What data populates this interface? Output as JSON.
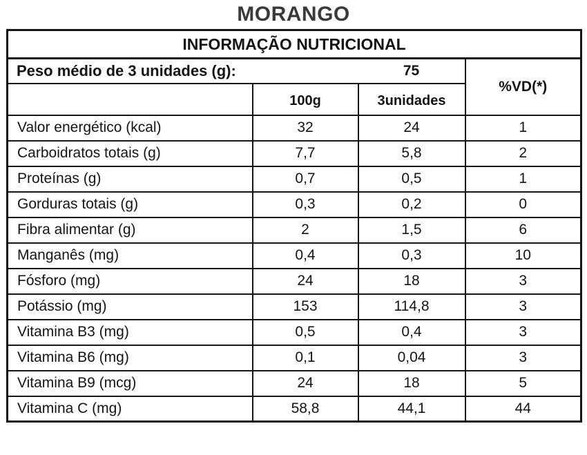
{
  "title": "MORANGO",
  "table": {
    "header": "INFORMAÇÃO NUTRICIONAL",
    "weight_row": {
      "label": "Peso médio de 3 unidades (g):",
      "value": "75"
    },
    "vd_header": "%VD(*)",
    "col_headers": {
      "per_100g": "100g",
      "per_3units": "3unidades"
    },
    "rows": [
      {
        "label": "Valor energético (kcal)",
        "per_100g": "32",
        "per_3units": "24",
        "vd": "1"
      },
      {
        "label": "Carboidratos totais (g)",
        "per_100g": "7,7",
        "per_3units": "5,8",
        "vd": "2"
      },
      {
        "label": "Proteínas (g)",
        "per_100g": "0,7",
        "per_3units": "0,5",
        "vd": "1"
      },
      {
        "label": "Gorduras totais (g)",
        "per_100g": "0,3",
        "per_3units": "0,2",
        "vd": "0"
      },
      {
        "label": "Fibra alimentar (g)",
        "per_100g": "2",
        "per_3units": "1,5",
        "vd": "6"
      },
      {
        "label": "Manganês (mg)",
        "per_100g": "0,4",
        "per_3units": "0,3",
        "vd": "10"
      },
      {
        "label": "Fósforo (mg)",
        "per_100g": "24",
        "per_3units": "18",
        "vd": "3"
      },
      {
        "label": "Potássio (mg)",
        "per_100g": "153",
        "per_3units": "114,8",
        "vd": "3"
      },
      {
        "label": "Vitamina B3 (mg)",
        "per_100g": "0,5",
        "per_3units": "0,4",
        "vd": "3"
      },
      {
        "label": "Vitamina B6 (mg)",
        "per_100g": "0,1",
        "per_3units": "0,04",
        "vd": "3"
      },
      {
        "label": "Vitamina B9 (mcg)",
        "per_100g": "24",
        "per_3units": "18",
        "vd": "5"
      },
      {
        "label": "Vitamina C (mg)",
        "per_100g": "58,8",
        "per_3units": "44,1",
        "vd": "44"
      }
    ]
  },
  "colors": {
    "background": "#ffffff",
    "text": "#141414",
    "border": "#161616",
    "title": "#3a3a3a"
  }
}
